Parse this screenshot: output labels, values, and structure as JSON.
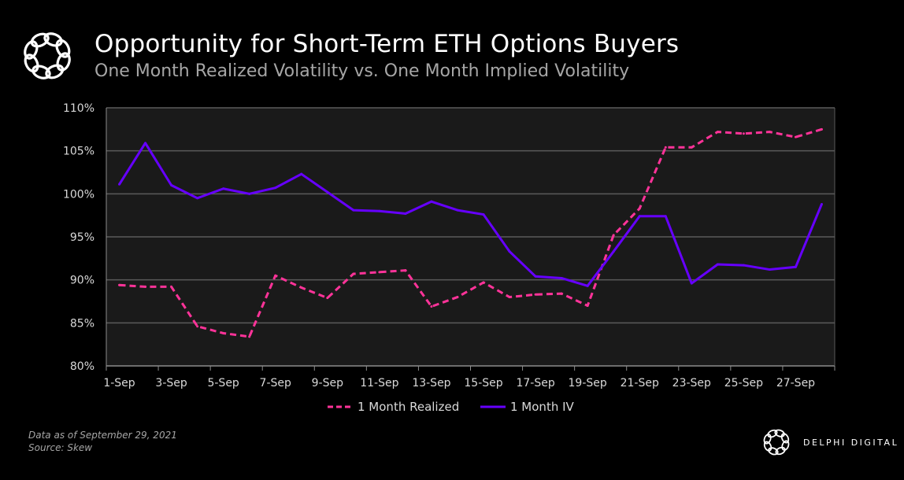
{
  "header": {
    "title": "Opportunity for Short-Term ETH Options Buyers",
    "subtitle": "One Month Realized Volatility vs. One Month Implied Volatility"
  },
  "footer": {
    "note": "Data as of September 29, 2021",
    "source": "Source:  Skew"
  },
  "brand": {
    "name": "DELPHI DIGITAL"
  },
  "chart_data": {
    "type": "line",
    "title": "",
    "xlabel": "",
    "ylabel": "",
    "ylim": [
      80,
      110
    ],
    "yticks": [
      "80%",
      "85%",
      "90%",
      "95%",
      "100%",
      "105%",
      "110%"
    ],
    "grid": true,
    "legend_position": "bottom",
    "background": "#1a1a1a",
    "categories": [
      "1-Sep",
      "2-Sep",
      "3-Sep",
      "4-Sep",
      "5-Sep",
      "6-Sep",
      "7-Sep",
      "8-Sep",
      "9-Sep",
      "10-Sep",
      "11-Sep",
      "12-Sep",
      "13-Sep",
      "14-Sep",
      "15-Sep",
      "16-Sep",
      "17-Sep",
      "18-Sep",
      "19-Sep",
      "20-Sep",
      "21-Sep",
      "22-Sep",
      "23-Sep",
      "24-Sep",
      "25-Sep",
      "26-Sep",
      "27-Sep",
      "28-Sep"
    ],
    "xtick_labels": [
      "1-Sep",
      "3-Sep",
      "5-Sep",
      "7-Sep",
      "9-Sep",
      "11-Sep",
      "13-Sep",
      "15-Sep",
      "17-Sep",
      "19-Sep",
      "21-Sep",
      "23-Sep",
      "25-Sep",
      "27-Sep"
    ],
    "series": [
      {
        "name": "1 Month Realized",
        "color": "#ff3399",
        "dash": true,
        "values": [
          89.4,
          89.2,
          89.2,
          84.6,
          83.8,
          83.4,
          90.5,
          89.1,
          87.9,
          90.7,
          90.9,
          91.1,
          86.9,
          88.0,
          89.7,
          88.0,
          88.3,
          88.4,
          87.0,
          95.2,
          98.3,
          105.4,
          105.4,
          107.2,
          107.0,
          107.2,
          106.6,
          107.5
        ]
      },
      {
        "name": "1 Month IV",
        "color": "#6600ff",
        "dash": false,
        "values": [
          101.1,
          105.9,
          101.0,
          99.5,
          100.6,
          100.0,
          100.7,
          102.3,
          100.2,
          98.1,
          98.0,
          97.7,
          99.1,
          98.1,
          97.6,
          93.3,
          90.4,
          90.2,
          89.3,
          93.3,
          97.4,
          97.4,
          89.6,
          91.8,
          91.7,
          91.2,
          91.5,
          98.8
        ]
      }
    ]
  }
}
